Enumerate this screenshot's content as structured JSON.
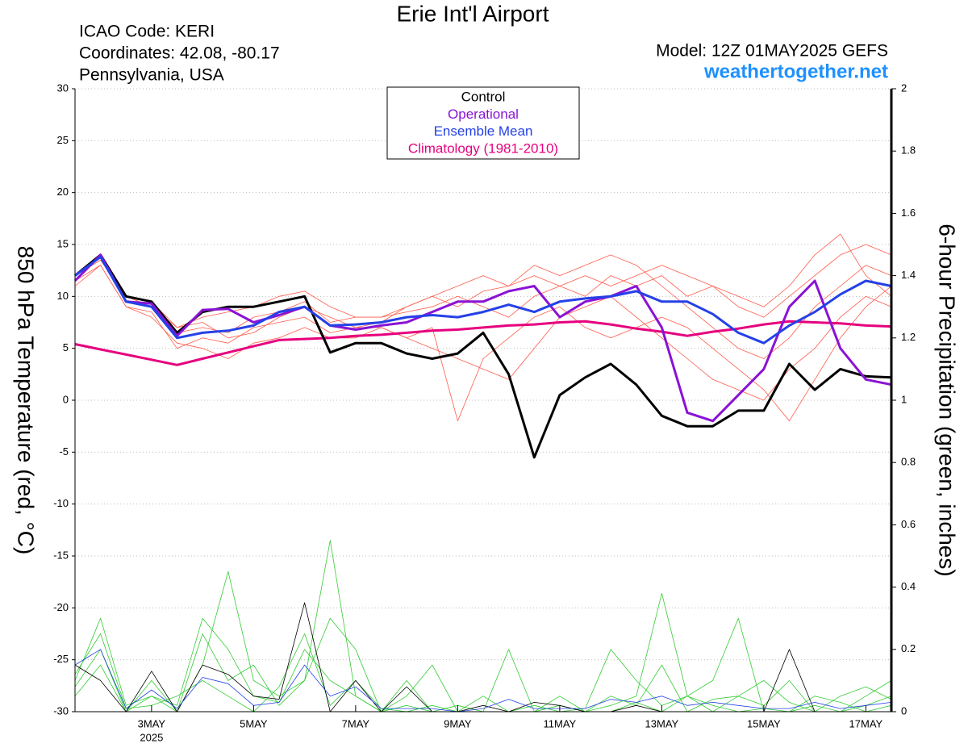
{
  "chart_data": {
    "type": "line",
    "title": "Erie Int'l Airport",
    "info_left": [
      "ICAO Code: KERI",
      "Coordinates: 42.08, -80.17",
      "Pennsylvania, USA"
    ],
    "model": "Model: 12Z 01MAY2025 GEFS",
    "source": "weathertogether.net",
    "ylabel": "850 hPa Temperature (red, °C)",
    "y2label": "6-hour Precipitation (green, inches)",
    "year_label": "2025",
    "x": [
      0,
      12,
      24,
      36,
      48,
      60,
      72,
      84,
      96,
      108,
      120,
      132,
      144,
      156,
      168,
      180,
      192,
      204,
      216,
      228,
      240,
      252,
      264,
      276,
      288,
      300,
      312,
      324,
      336,
      348,
      360,
      372,
      384
    ],
    "xlim": [
      0,
      384
    ],
    "xticks": [
      {
        "value": 36,
        "label": "3MAY"
      },
      {
        "value": 84,
        "label": "5MAY"
      },
      {
        "value": 132,
        "label": "7MAY"
      },
      {
        "value": 180,
        "label": "9MAY"
      },
      {
        "value": 228,
        "label": "11MAY"
      },
      {
        "value": 276,
        "label": "13MAY"
      },
      {
        "value": 324,
        "label": "15MAY"
      },
      {
        "value": 372,
        "label": "17MAY"
      }
    ],
    "ylim": [
      -30,
      30
    ],
    "yticks": [
      -30,
      -25,
      -20,
      -15,
      -10,
      -5,
      0,
      5,
      10,
      15,
      20,
      25,
      30
    ],
    "y2lim": [
      0,
      2
    ],
    "y2ticks": [
      0,
      0.2,
      0.4,
      0.6,
      0.8,
      1,
      1.2,
      1.4,
      1.6,
      1.8,
      2
    ],
    "grid": true,
    "series": [
      {
        "color": "#ff5a4a",
        "values": [
          12,
          13.5,
          10,
          9,
          7,
          7.5,
          6,
          6.5,
          8,
          9,
          8,
          7,
          7.5,
          9,
          10,
          9,
          10.5,
          11,
          12,
          11,
          10,
          12,
          11,
          12,
          10,
          11,
          9,
          8,
          10,
          12,
          14,
          15,
          14
        ]
      },
      {
        "color": "#ff5a4a",
        "values": [
          11,
          13,
          9,
          8,
          5.5,
          5,
          4,
          5.5,
          6,
          7,
          6,
          6,
          7,
          6,
          5,
          4,
          3,
          2,
          5,
          8,
          9,
          10,
          8,
          6,
          4,
          2,
          1,
          0,
          3,
          5,
          8,
          10,
          9
        ]
      },
      {
        "color": "#ff5a4a",
        "values": [
          12,
          14,
          10,
          9.5,
          7,
          8,
          8.5,
          9,
          10,
          10.5,
          9,
          8,
          8,
          9,
          10,
          11,
          12,
          11,
          13,
          12,
          13,
          14,
          13,
          11,
          9,
          7,
          5,
          4,
          6,
          9,
          11,
          13,
          12
        ]
      },
      {
        "color": "#ff5a4a",
        "values": [
          11.5,
          13,
          9,
          8.5,
          5,
          6,
          5.5,
          7,
          7.5,
          8,
          6.5,
          7,
          7,
          6,
          7,
          -2,
          4,
          6,
          8,
          9,
          7,
          6,
          7,
          8,
          7,
          5,
          3,
          1,
          -2,
          2,
          6,
          9,
          11
        ]
      },
      {
        "color": "#ff5a4a",
        "values": [
          12,
          13.5,
          10,
          9,
          6.5,
          7,
          6.5,
          8,
          8.5,
          9.5,
          7.5,
          8,
          8,
          8.5,
          9,
          10,
          9,
          8,
          10,
          11,
          12,
          11,
          12,
          13,
          12,
          11,
          10,
          9,
          11,
          14,
          16,
          12,
          10
        ]
      },
      {
        "color": "#33cc33",
        "axis": "y2",
        "values": [
          0.1,
          0.3,
          0.02,
          0.05,
          0.02,
          0.3,
          0.2,
          0.05,
          0.03,
          0.2,
          0.1,
          0.05,
          0,
          0.02,
          0,
          0,
          0,
          0,
          0,
          0.02,
          0,
          0,
          0.03,
          0,
          0.05,
          0.02,
          0,
          0.01,
          0,
          0.02,
          0,
          0.05,
          0.1
        ]
      },
      {
        "color": "#33cc33",
        "axis": "y2",
        "values": [
          0.05,
          0.15,
          0,
          0.1,
          0,
          0.15,
          0.45,
          0.1,
          0.05,
          0.1,
          0.3,
          0.2,
          0,
          0.1,
          0,
          0.02,
          0,
          0.2,
          0,
          0,
          0,
          0.05,
          0.02,
          0.15,
          0,
          0.04,
          0.05,
          0.02,
          0.1,
          0,
          0,
          0.02,
          0.05
        ]
      },
      {
        "color": "#33cc33",
        "axis": "y2",
        "values": [
          0.12,
          0.25,
          0.01,
          0.02,
          0.05,
          0.1,
          0.05,
          0,
          0.08,
          0.25,
          0.02,
          0.1,
          0.01,
          0,
          0.02,
          0,
          0.05,
          0,
          0.02,
          0,
          0.01,
          0.2,
          0.1,
          0.02,
          0.05,
          0.1,
          0.3,
          0,
          0,
          0.05,
          0.03,
          0,
          0.02
        ]
      },
      {
        "color": "#33cc33",
        "axis": "y2",
        "values": [
          0.08,
          0.2,
          0,
          0.05,
          0,
          0.25,
          0.1,
          0.15,
          0.02,
          0.1,
          0.55,
          0.05,
          0,
          0.05,
          0.15,
          0,
          0,
          0,
          0,
          0.05,
          0,
          0.02,
          0.05,
          0.38,
          0.05,
          0,
          0.05,
          0.1,
          0.03,
          0,
          0.05,
          0.08,
          0.04
        ]
      },
      {
        "name": "Climatology (1981-2010)",
        "color": "#e6007e",
        "values": [
          5.4,
          4.9,
          4.4,
          3.9,
          3.4,
          4.0,
          4.6,
          5.2,
          5.8,
          5.9,
          6.0,
          6.2,
          6.3,
          6.5,
          6.7,
          6.8,
          7.0,
          7.2,
          7.3,
          7.5,
          7.6,
          7.3,
          6.9,
          6.6,
          6.2,
          6.6,
          6.9,
          7.3,
          7.6,
          7.5,
          7.4,
          7.2,
          7.1
        ]
      },
      {
        "color": "#000000",
        "axis": "y2",
        "values": [
          0.15,
          0.1,
          0,
          0.13,
          0,
          0.15,
          0.12,
          0.05,
          0.04,
          0.35,
          0,
          0.1,
          0,
          0.08,
          0,
          0,
          0.02,
          0,
          0.03,
          0.02,
          0,
          0,
          0.02,
          0,
          0,
          0,
          0,
          0,
          0.2,
          0,
          0,
          0,
          0
        ]
      },
      {
        "color": "#2541e6",
        "axis": "y2",
        "values": [
          0.15,
          0.2,
          0.01,
          0.07,
          0.01,
          0.11,
          0.09,
          0.02,
          0.03,
          0.15,
          0.05,
          0.08,
          0.01,
          0.01,
          0.01,
          0,
          0.01,
          0.04,
          0.01,
          0.01,
          0.01,
          0.04,
          0.03,
          0.05,
          0.02,
          0.03,
          0.02,
          0.01,
          0.01,
          0.03,
          0.01,
          0.02,
          0.03
        ]
      },
      {
        "name": "Control",
        "color": "#000000",
        "values": [
          12,
          14,
          10,
          9.5,
          6.5,
          8.5,
          9,
          9,
          9.5,
          10,
          4.6,
          5.5,
          5.5,
          4.5,
          4,
          4.5,
          6.5,
          2.5,
          -5.5,
          0.5,
          2.2,
          3.5,
          1.5,
          -1.5,
          -2.5,
          -2.5,
          -1,
          -1,
          3.5,
          1,
          3,
          2.3,
          2.2
        ]
      },
      {
        "name": "Operational",
        "color": "#8a12d6",
        "values": [
          11.5,
          14,
          9.5,
          9.3,
          6.2,
          8.7,
          8.8,
          7.5,
          8.2,
          9,
          7.2,
          6.8,
          7.2,
          7.5,
          8.5,
          9.5,
          9.5,
          10.5,
          11,
          8,
          9.5,
          10,
          11,
          7,
          -1.2,
          -2,
          0.5,
          3,
          9,
          11.5,
          5,
          2,
          1.5
        ]
      },
      {
        "name": "Ensemble Mean",
        "color": "#2541e6",
        "values": [
          12,
          13.8,
          9.5,
          9,
          6,
          6.5,
          6.7,
          7.2,
          8.5,
          9,
          7.2,
          7.3,
          7.5,
          8,
          8.2,
          8,
          8.5,
          9.2,
          8.5,
          9.5,
          9.8,
          10,
          10.5,
          9.5,
          9.5,
          8.3,
          6.5,
          5.5,
          7.2,
          8.5,
          10.2,
          11.5,
          11
        ]
      }
    ]
  }
}
